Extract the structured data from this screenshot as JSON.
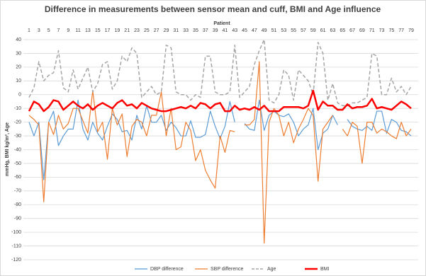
{
  "chart_data": {
    "type": "line",
    "title": "Difference in measurements between sensor mean and cuff, BMI and Age influence",
    "x_label": "Patient",
    "y_label": "mmHg, BMI kg/m², Age",
    "categories": [
      1,
      null,
      3,
      null,
      5,
      null,
      7,
      null,
      9,
      null,
      11,
      null,
      13,
      null,
      15,
      null,
      17,
      null,
      19,
      null,
      21,
      null,
      23,
      null,
      25,
      null,
      27,
      null,
      29,
      null,
      31,
      null,
      33,
      null,
      35,
      null,
      37,
      null,
      39,
      null,
      41,
      null,
      43,
      null,
      45,
      null,
      47,
      null,
      49,
      null,
      51,
      null,
      53,
      null,
      55,
      null,
      57,
      null,
      59,
      null,
      61,
      null,
      63,
      null,
      65,
      null,
      67,
      null,
      69,
      null,
      71,
      null,
      73,
      null,
      75,
      null,
      77,
      null,
      79
    ],
    "ylim": [
      -120,
      40
    ],
    "yticks": [
      40,
      30,
      20,
      10,
      0,
      -10,
      -20,
      -30,
      -40,
      -50,
      -60,
      -70,
      -80,
      -90,
      -100,
      -110,
      -120
    ],
    "grid": true,
    "legend": "bottom",
    "series": [
      {
        "name": "DBP difference",
        "color": "#5b9bd5",
        "dashed": false,
        "width": 1.2,
        "values": [
          -20,
          -30,
          -20,
          -62,
          -20,
          -12,
          -37,
          -30,
          -25,
          -25,
          -4,
          -25,
          -33,
          -20,
          -28,
          -33,
          -23,
          -14,
          -18,
          -27,
          -26,
          -33,
          -15,
          -25,
          -8,
          -20,
          -20,
          -15,
          -26,
          -20,
          -24,
          -30,
          -30,
          -19,
          -31,
          -31,
          -29,
          -12,
          -23,
          -32,
          -23,
          -5,
          -20,
          null,
          -21,
          -25,
          -26,
          -4,
          -26,
          -15,
          -12,
          -15,
          -16,
          -14,
          -20,
          -30,
          -25,
          -22,
          -10,
          -40,
          -28,
          -25,
          -15,
          -22,
          null,
          -18,
          -23,
          -25,
          -26,
          -23,
          -26,
          -12,
          -12,
          -28,
          -18,
          -20,
          -26,
          -27,
          -30
        ]
      },
      {
        "name": "SBP difference",
        "color": "#ed7d31",
        "dashed": false,
        "width": 1.2,
        "values": [
          -15,
          -18,
          -22,
          -78,
          -20,
          -29,
          -15,
          -25,
          -21,
          -10,
          -10,
          -19,
          -28,
          3,
          -27,
          -20,
          -47,
          -10,
          -22,
          -14,
          -45,
          -23,
          -18,
          -20,
          -30,
          -15,
          -15,
          2,
          -30,
          -10,
          -40,
          -38,
          -20,
          -26,
          -48,
          -40,
          -55,
          -62,
          -68,
          -30,
          -42,
          -26,
          -27,
          null,
          -22,
          -22,
          -18,
          24,
          -108,
          -20,
          -10,
          -15,
          -30,
          -20,
          -35,
          -25,
          -18,
          -10,
          -15,
          -63,
          -25,
          -20,
          -15,
          null,
          -25,
          -30,
          -20,
          -23,
          -50,
          -20,
          -20,
          -28,
          -25,
          -27,
          -30,
          -32,
          -20,
          -30,
          -25
        ]
      },
      {
        "name": "Age",
        "color": "#a5a5a5",
        "dashed": true,
        "width": 1.5,
        "values": [
          -2,
          5,
          24,
          10,
          14,
          16,
          32,
          5,
          2,
          18,
          4,
          12,
          20,
          2,
          8,
          22,
          24,
          4,
          10,
          28,
          24,
          34,
          30,
          -2,
          2,
          6,
          0,
          2,
          36,
          34,
          2,
          0,
          0,
          -4,
          0,
          -2,
          28,
          28,
          2,
          0,
          0,
          2,
          36,
          -2,
          2,
          6,
          22,
          32,
          40,
          -4,
          -6,
          0,
          18,
          14,
          -4,
          18,
          14,
          10,
          0,
          38,
          30,
          -4,
          8,
          -6,
          -8,
          -8,
          -6,
          -6,
          -4,
          -2,
          30,
          28,
          0,
          0,
          12,
          2,
          6,
          0,
          6
        ]
      },
      {
        "name": "BMI",
        "color": "#ff0000",
        "dashed": false,
        "width": 2.5,
        "values": [
          -12,
          -5,
          -7,
          -12,
          -9,
          -4,
          -5,
          -11,
          -8,
          -5,
          -8,
          -10,
          -7,
          -11,
          -8,
          -6,
          -8,
          -10,
          -6,
          -4,
          -8,
          -7,
          -10,
          -6,
          -8,
          -10,
          -11,
          -12,
          -12,
          -11,
          -10,
          -9,
          -10,
          -8,
          -10,
          -6,
          -7,
          -10,
          -7,
          -6,
          -12,
          -12,
          -8,
          -11,
          -10,
          -11,
          -9,
          -11,
          -8,
          -12,
          -12,
          -12,
          -9,
          -9,
          -9,
          -9,
          -10,
          -8,
          3,
          -11,
          -5,
          -8,
          -8,
          -11,
          -11,
          -7,
          -10,
          -9,
          -9,
          -8,
          -3,
          -10,
          -9,
          -10,
          -11,
          -8,
          -5,
          -7,
          -10
        ]
      }
    ]
  }
}
